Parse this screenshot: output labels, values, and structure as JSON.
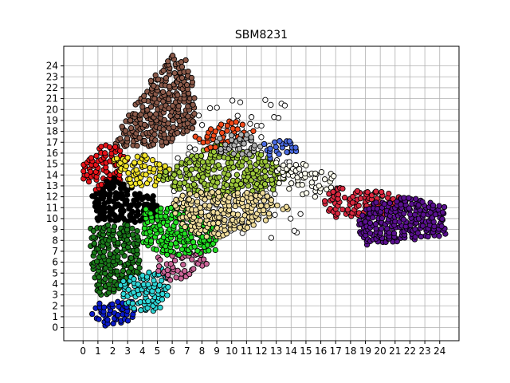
{
  "chart_data": {
    "type": "scatter",
    "title": "SBM8231",
    "xlabel": "",
    "ylabel": "",
    "xlim": [
      -1.3,
      25.3
    ],
    "ylim": [
      -1.2,
      25.8
    ],
    "grid": true,
    "xticks": [
      0,
      1,
      2,
      3,
      4,
      5,
      6,
      7,
      8,
      9,
      10,
      11,
      12,
      13,
      14,
      15,
      16,
      17,
      18,
      19,
      20,
      21,
      22,
      23,
      24
    ],
    "yticks": [
      0,
      1,
      2,
      3,
      4,
      5,
      6,
      7,
      8,
      9,
      10,
      11,
      12,
      13,
      14,
      15,
      16,
      17,
      18,
      19,
      20,
      21,
      22,
      23,
      24
    ],
    "clusters": [
      {
        "color": "#8B5A4A",
        "polygon": [
          [
            2,
            17
          ],
          [
            3,
            19.5
          ],
          [
            5,
            23.5
          ],
          [
            6,
            25
          ],
          [
            7,
            24.5
          ],
          [
            7.5,
            22
          ],
          [
            7.5,
            18
          ],
          [
            5,
            16.5
          ],
          [
            2,
            16.5
          ]
        ],
        "density": 0.9
      },
      {
        "color": "#E8141B",
        "polygon": [
          [
            0,
            15
          ],
          [
            1,
            16.5
          ],
          [
            2,
            17
          ],
          [
            3,
            15.5
          ],
          [
            2.5,
            13.5
          ],
          [
            1,
            12.5
          ],
          [
            0,
            13.5
          ]
        ],
        "density": 0.9
      },
      {
        "color": "#000000",
        "polygon": [
          [
            0.5,
            12
          ],
          [
            2,
            14
          ],
          [
            3,
            13
          ],
          [
            5,
            12
          ],
          [
            5,
            10
          ],
          [
            3,
            9.5
          ],
          [
            1,
            9.5
          ]
        ],
        "density": 1.0
      },
      {
        "color": "#1A7A1A",
        "polygon": [
          [
            0.5,
            9.5
          ],
          [
            3,
            9.5
          ],
          [
            4,
            8.5
          ],
          [
            4,
            5
          ],
          [
            2,
            3
          ],
          [
            1,
            3
          ],
          [
            0.5,
            6
          ]
        ],
        "density": 0.9
      },
      {
        "color": "#0A1ACC",
        "polygon": [
          [
            0.5,
            2.5
          ],
          [
            3.5,
            2.5
          ],
          [
            3.5,
            0.8
          ],
          [
            1.5,
            0
          ],
          [
            0.5,
            1
          ]
        ],
        "density": 0.9
      },
      {
        "color": "#2ED8D8",
        "polygon": [
          [
            2.5,
            4.5
          ],
          [
            5.5,
            5.5
          ],
          [
            6,
            3
          ],
          [
            5,
            1.5
          ],
          [
            3,
            1.5
          ],
          [
            2.5,
            3
          ]
        ],
        "density": 0.8
      },
      {
        "color": "#CC6699",
        "polygon": [
          [
            5,
            6.5
          ],
          [
            8,
            7
          ],
          [
            8.5,
            5.5
          ],
          [
            6,
            4
          ],
          [
            5,
            5
          ]
        ],
        "density": 0.7
      },
      {
        "color": "#22E022",
        "polygon": [
          [
            4,
            11
          ],
          [
            7,
            11
          ],
          [
            9,
            9
          ],
          [
            9,
            7
          ],
          [
            6,
            6.5
          ],
          [
            4,
            7.5
          ]
        ],
        "density": 0.9
      },
      {
        "color": "#F5E62A",
        "polygon": [
          [
            2,
            15.5
          ],
          [
            4,
            16
          ],
          [
            6,
            14.5
          ],
          [
            5,
            13
          ],
          [
            3,
            13
          ]
        ],
        "density": 0.85
      },
      {
        "color": "#9DC83A",
        "polygon": [
          [
            5,
            14
          ],
          [
            7,
            15.5
          ],
          [
            9,
            17
          ],
          [
            12,
            16
          ],
          [
            14,
            14.5
          ],
          [
            13,
            12.5
          ],
          [
            9,
            12
          ],
          [
            6,
            12.5
          ]
        ],
        "density": 0.8
      },
      {
        "color": "#F0DD9C",
        "polygon": [
          [
            6,
            12
          ],
          [
            8,
            12.5
          ],
          [
            12,
            12.5
          ],
          [
            14,
            11
          ],
          [
            12,
            9.5
          ],
          [
            9,
            8
          ],
          [
            7,
            9
          ],
          [
            6,
            10.5
          ]
        ],
        "density": 0.85
      },
      {
        "color": "#F24A1A",
        "polygon": [
          [
            7.5,
            17.5
          ],
          [
            9,
            19
          ],
          [
            11,
            19
          ],
          [
            12,
            18
          ],
          [
            10,
            17
          ],
          [
            8,
            16
          ]
        ],
        "density": 0.5
      },
      {
        "color": "#B0B0B0",
        "polygon": [
          [
            9,
            17.5
          ],
          [
            11,
            18
          ],
          [
            12,
            16.5
          ],
          [
            11,
            15.5
          ],
          [
            9,
            16
          ]
        ],
        "density": 0.7
      },
      {
        "color": "#4A6AE0",
        "polygon": [
          [
            12,
            17
          ],
          [
            14,
            17.5
          ],
          [
            14.5,
            16
          ],
          [
            12.5,
            15.5
          ]
        ],
        "density": 0.8
      },
      {
        "color": "#FFFFF0",
        "polygon": [
          [
            12.5,
            15.5
          ],
          [
            15,
            15
          ],
          [
            17,
            14
          ],
          [
            17,
            12
          ],
          [
            15,
            12
          ],
          [
            13,
            13
          ]
        ],
        "density": 0.5
      },
      {
        "color": "#DC2840",
        "polygon": [
          [
            16,
            11.5
          ],
          [
            17,
            13
          ],
          [
            20,
            12.5
          ],
          [
            22,
            12
          ],
          [
            21.5,
            10.5
          ],
          [
            19,
            10
          ],
          [
            17,
            10
          ]
        ],
        "density": 0.8
      },
      {
        "color": "#5A1090",
        "polygon": [
          [
            18.5,
            10
          ],
          [
            19.5,
            11.5
          ],
          [
            22,
            12
          ],
          [
            24.5,
            11
          ],
          [
            24.5,
            8.5
          ],
          [
            22,
            8
          ],
          [
            19,
            7.5
          ],
          [
            18.5,
            8.5
          ]
        ],
        "density": 1.0
      },
      {
        "color": "#FFFFFF",
        "polygon": [
          [
            6,
            21
          ],
          [
            13,
            21
          ],
          [
            15,
            19
          ],
          [
            15,
            9
          ],
          [
            13,
            8
          ],
          [
            7,
            8
          ],
          [
            6,
            12
          ]
        ],
        "density": 0.08
      }
    ]
  }
}
